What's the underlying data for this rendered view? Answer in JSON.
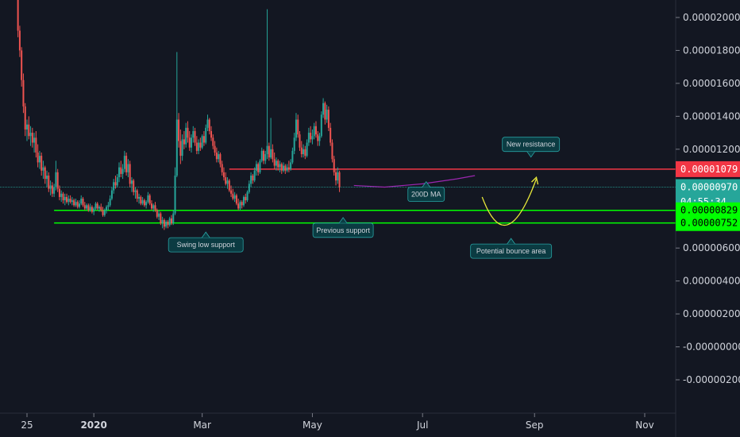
{
  "chart_data": {
    "type": "candlestick",
    "title": "",
    "xlabel": "",
    "ylabel": "",
    "ylim": [
      -3.8e-06,
      2.15e-05
    ],
    "y_ticks": [
      "0.00002000",
      "0.00001800",
      "0.00001600",
      "0.00001400",
      "0.00001200",
      "0.00000600",
      "0.00000400",
      "0.00000200",
      "-0.00000000",
      "-0.00000200"
    ],
    "y_tick_values": [
      2e-05,
      1.8e-05,
      1.6e-05,
      1.4e-05,
      1.2e-05,
      6e-06,
      4e-06,
      2e-06,
      0.0,
      -2e-06
    ],
    "x_ticks": [
      {
        "label": "25",
        "date": "2019-11-25",
        "bold": false
      },
      {
        "label": "2020",
        "date": "2020-01-01",
        "bold": true
      },
      {
        "label": "Mar",
        "date": "2020-03-01",
        "bold": false
      },
      {
        "label": "May",
        "date": "2020-05-01",
        "bold": false
      },
      {
        "label": "Jul",
        "date": "2020-07-01",
        "bold": false
      },
      {
        "label": "Sep",
        "date": "2020-09-01",
        "bold": false
      },
      {
        "label": "Nov",
        "date": "2020-11-01",
        "bold": false
      }
    ],
    "price_levels": [
      {
        "label": "0.00001079",
        "value": 1.079e-05,
        "color": "#f23645",
        "text_color": "#ffffff",
        "line": "resistance"
      },
      {
        "label": "0.00000970",
        "value": 9.7e-06,
        "color": "#26a69a",
        "text_color": "#ffffff",
        "line": "last"
      },
      {
        "label": "04:55:34",
        "value": 8.8e-06,
        "color": "#26a69a",
        "text_color": "#ffffff",
        "line": "countdown"
      },
      {
        "label": "0.00000829",
        "value": 8.29e-06,
        "color": "#00ff00",
        "text_color": "#000000",
        "line": "support"
      },
      {
        "label": "0.00000752",
        "value": 7.52e-06,
        "color": "#00ff00",
        "text_color": "#000000",
        "line": "support"
      }
    ],
    "lines": {
      "resistance": {
        "value": 1.079e-05,
        "from": "2020-03-16",
        "color": "#f23645"
      },
      "support_upper": {
        "value": 8.29e-06,
        "from": "2019-12-10",
        "color": "#00ff00"
      },
      "support_lower": {
        "value": 7.52e-06,
        "from": "2019-12-10",
        "color": "#00ff00"
      },
      "last_price": {
        "value": 9.7e-06,
        "color": "#26a69a"
      }
    },
    "ma200": {
      "name": "200D MA",
      "color": "#9c27b0",
      "points": [
        [
          "2020-05-24",
          9.8e-06
        ],
        [
          "2020-06-10",
          9.7e-06
        ],
        [
          "2020-07-01",
          9.9e-06
        ],
        [
          "2020-07-20",
          1.02e-05
        ],
        [
          "2020-07-30",
          1.04e-05
        ]
      ]
    },
    "projection": {
      "color": "#e8e83a",
      "points": [
        [
          "2020-08-03",
          9.1e-06
        ],
        [
          "2020-08-18",
          7.5e-06
        ],
        [
          "2020-09-02",
          1.02e-05
        ]
      ]
    },
    "annotations": [
      {
        "text": "Swing low support",
        "date": "2020-03-03",
        "value": 7.5e-06
      },
      {
        "text": "Previous support",
        "date": "2020-05-18",
        "value": 7.9e-06
      },
      {
        "text": "200D MA",
        "date": "2020-07-03",
        "value": 9.5e-06
      },
      {
        "text": "Potential bounce area",
        "date": "2020-08-19",
        "value": 7.5e-06
      },
      {
        "text": "New resistance",
        "date": "2020-08-30",
        "value": 1.08e-05
      }
    ],
    "candles_start": "2019-11-20",
    "ohlc": [
      [
        2.15e-05,
        2.15e-05,
        1.88e-05,
        1.92e-05
      ],
      [
        1.92e-05,
        1.95e-05,
        1.76e-05,
        1.8e-05
      ],
      [
        1.8e-05,
        1.82e-05,
        1.58e-05,
        1.62e-05
      ],
      [
        1.62e-05,
        1.66e-05,
        1.42e-05,
        1.46e-05
      ],
      [
        1.46e-05,
        1.48e-05,
        1.28e-05,
        1.32e-05
      ],
      [
        1.32e-05,
        1.38e-05,
        1.25e-05,
        1.35e-05
      ],
      [
        1.35e-05,
        1.4e-05,
        1.26e-05,
        1.28e-05
      ],
      [
        1.28e-05,
        1.34e-05,
        1.22e-05,
        1.3e-05
      ],
      [
        1.3e-05,
        1.33e-05,
        1.21e-05,
        1.24e-05
      ],
      [
        1.24e-05,
        1.3e-05,
        1.18e-05,
        1.27e-05
      ],
      [
        1.27e-05,
        1.31e-05,
        1.15e-05,
        1.18e-05
      ],
      [
        1.18e-05,
        1.23e-05,
        1.09e-05,
        1.12e-05
      ],
      [
        1.12e-05,
        1.19e-05,
        1.08e-05,
        1.16e-05
      ],
      [
        1.16e-05,
        1.18e-05,
        1.04e-05,
        1.07e-05
      ],
      [
        1.07e-05,
        1.13e-05,
        1.02e-05,
        1.09e-05
      ],
      [
        1.09e-05,
        1.1e-05,
        9.9e-06,
        1.02e-05
      ],
      [
        1.02e-05,
        1.07e-05,
        9.7e-06,
        1.04e-05
      ],
      [
        1.04e-05,
        1.06e-05,
        9.4e-06,
        9.6e-06
      ],
      [
        9.6e-06,
        1.01e-05,
        9.2e-06,
        9.8e-06
      ],
      [
        9.8e-06,
        1e-05,
        9.1e-06,
        9.3e-06
      ],
      [
        9.3e-06,
        9.9e-06,
        9.1e-06,
        9.7e-06
      ],
      [
        9.7e-06,
        1.13e-05,
        9.5e-06,
        1.06e-05
      ],
      [
        1.06e-05,
        1.08e-05,
        9.4e-06,
        9.6e-06
      ],
      [
        9.6e-06,
        9.8e-06,
        8.9e-06,
        9.1e-06
      ],
      [
        9.1e-06,
        9.5e-06,
        8.8e-06,
        9.3e-06
      ],
      [
        9.3e-06,
        9.4e-06,
        8.7e-06,
        8.9e-06
      ],
      [
        8.9e-06,
        9.3e-06,
        8.6e-06,
        9.1e-06
      ],
      [
        9.1e-06,
        9.3e-06,
        8.7e-06,
        8.8e-06
      ],
      [
        8.8e-06,
        9.2e-06,
        8.6e-06,
        9e-06
      ],
      [
        9e-06,
        9.2e-06,
        8.7e-06,
        8.8e-06
      ],
      [
        8.8e-06,
        9.1e-06,
        8.6e-06,
        8.9e-06
      ],
      [
        8.9e-06,
        9e-06,
        8.5e-06,
        8.6e-06
      ],
      [
        8.6e-06,
        9e-06,
        8.5e-06,
        8.8e-06
      ],
      [
        8.8e-06,
        8.9e-06,
        8.4e-06,
        8.5e-06
      ],
      [
        8.5e-06,
        8.9e-06,
        8.4e-06,
        8.7e-06
      ],
      [
        8.7e-06,
        9.2e-06,
        8.6e-06,
        9e-06
      ],
      [
        9e-06,
        9.1e-06,
        8.5e-06,
        8.6e-06
      ],
      [
        8.6e-06,
        8.8e-06,
        8.3e-06,
        8.4e-06
      ],
      [
        8.4e-06,
        8.7e-06,
        8.3e-06,
        8.6e-06
      ],
      [
        8.6e-06,
        8.7e-06,
        8.2e-06,
        8.3e-06
      ],
      [
        8.3e-06,
        8.7e-06,
        8.2e-06,
        8.5e-06
      ],
      [
        8.5e-06,
        8.6e-06,
        8.1e-06,
        8.2e-06
      ],
      [
        8.2e-06,
        8.5e-06,
        8e-06,
        8.4e-06
      ],
      [
        8.4e-06,
        8.8e-06,
        8.3e-06,
        8.7e-06
      ],
      [
        8.7e-06,
        8.8e-06,
        8.3e-06,
        8.4e-06
      ],
      [
        8.4e-06,
        8.6e-06,
        8.2e-06,
        8.5e-06
      ],
      [
        8.5e-06,
        8.7e-06,
        8.2e-06,
        8.3e-06
      ],
      [
        8.3e-06,
        8.5e-06,
        7.9e-06,
        8e-06
      ],
      [
        8e-06,
        8.4e-06,
        7.9e-06,
        8.3e-06
      ],
      [
        8.3e-06,
        8.6e-06,
        8.1e-06,
        8.5e-06
      ],
      [
        8.5e-06,
        8.8e-06,
        8.3e-06,
        8.6e-06
      ],
      [
        8.6e-06,
        9.2e-06,
        8.5e-06,
        9e-06
      ],
      [
        9e-06,
        9.7e-06,
        8.9e-06,
        9.5e-06
      ],
      [
        9.5e-06,
        1.02e-05,
        9.3e-06,
        1e-05
      ],
      [
        1e-05,
        1.04e-05,
        9.6e-06,
        9.8e-06
      ],
      [
        9.8e-06,
        1.05e-05,
        9.7e-06,
        1.03e-05
      ],
      [
        1.03e-05,
        1.12e-05,
        1e-05,
        1.09e-05
      ],
      [
        1.09e-05,
        1.13e-05,
        1.03e-05,
        1.05e-05
      ],
      [
        1.05e-05,
        1.11e-05,
        1.02e-05,
        1.08e-05
      ],
      [
        1.08e-05,
        1.19e-05,
        1.06e-05,
        1.16e-05
      ],
      [
        1.16e-05,
        1.18e-05,
        1.04e-05,
        1.06e-05
      ],
      [
        1.06e-05,
        1.14e-05,
        1.03e-05,
        1.11e-05
      ],
      [
        1.11e-05,
        1.13e-05,
        9.7e-06,
        9.9e-06
      ],
      [
        9.9e-06,
        1.03e-05,
        9.4e-06,
        1.01e-05
      ],
      [
        1.01e-05,
        1.02e-05,
        9.2e-06,
        9.4e-06
      ],
      [
        9.4e-06,
        9.7e-06,
        9e-06,
        9.5e-06
      ],
      [
        9.5e-06,
        9.6e-06,
        8.8e-06,
        9e-06
      ],
      [
        9e-06,
        9.3e-06,
        8.7e-06,
        9.1e-06
      ],
      [
        9.1e-06,
        9.2e-06,
        8.6e-06,
        8.7e-06
      ],
      [
        8.7e-06,
        9.1e-06,
        8.6e-06,
        8.9e-06
      ],
      [
        8.9e-06,
        9e-06,
        8.5e-06,
        8.6e-06
      ],
      [
        8.6e-06,
        8.9e-06,
        8.4e-06,
        8.8e-06
      ],
      [
        8.8e-06,
        9.4e-06,
        8.7e-06,
        9.2e-06
      ],
      [
        9.2e-06,
        9.3e-06,
        8.6e-06,
        8.7e-06
      ],
      [
        8.7e-06,
        8.9e-06,
        8.3e-06,
        8.4e-06
      ],
      [
        8.4e-06,
        8.7e-06,
        8.2e-06,
        8.6e-06
      ],
      [
        8.6e-06,
        8.8e-06,
        8.2e-06,
        8.3e-06
      ],
      [
        8.3e-06,
        8.4e-06,
        7.8e-06,
        7.9e-06
      ],
      [
        7.9e-06,
        8.3e-06,
        7.7e-06,
        8.1e-06
      ],
      [
        8.1e-06,
        8.2e-06,
        7.4e-06,
        7.5e-06
      ],
      [
        7.5e-06,
        7.9e-06,
        7.2e-06,
        7.7e-06
      ],
      [
        7.7e-06,
        7.8e-06,
        7.1e-06,
        7.3e-06
      ],
      [
        7.3e-06,
        7.7e-06,
        7.2e-06,
        7.6e-06
      ],
      [
        7.6e-06,
        7.7e-06,
        7.2e-06,
        7.4e-06
      ],
      [
        7.4e-06,
        7.9e-06,
        7.3e-06,
        7.8e-06
      ],
      [
        7.8e-06,
        8e-06,
        7.4e-06,
        7.5e-06
      ],
      [
        7.5e-06,
        8.3e-06,
        7.4e-06,
        8.1e-06
      ],
      [
        8.1e-06,
        1.09e-05,
        8e-06,
        1.04e-05
      ],
      [
        1.04e-05,
        1.79e-05,
        1.03e-05,
        1.38e-05
      ],
      [
        1.38e-05,
        1.42e-05,
        1.21e-05,
        1.25e-05
      ],
      [
        1.25e-05,
        1.32e-05,
        1.11e-05,
        1.16e-05
      ],
      [
        1.16e-05,
        1.29e-05,
        1.13e-05,
        1.26e-05
      ],
      [
        1.26e-05,
        1.31e-05,
        1.2e-05,
        1.23e-05
      ],
      [
        1.23e-05,
        1.36e-05,
        1.21e-05,
        1.33e-05
      ],
      [
        1.33e-05,
        1.37e-05,
        1.24e-05,
        1.27e-05
      ],
      [
        1.27e-05,
        1.31e-05,
        1.19e-05,
        1.21e-05
      ],
      [
        1.21e-05,
        1.29e-05,
        1.18e-05,
        1.27e-05
      ],
      [
        1.27e-05,
        1.34e-05,
        1.24e-05,
        1.31e-05
      ],
      [
        1.31e-05,
        1.33e-05,
        1.22e-05,
        1.24e-05
      ],
      [
        1.24e-05,
        1.28e-05,
        1.17e-05,
        1.19e-05
      ],
      [
        1.19e-05,
        1.26e-05,
        1.17e-05,
        1.24e-05
      ],
      [
        1.24e-05,
        1.27e-05,
        1.19e-05,
        1.21e-05
      ],
      [
        1.21e-05,
        1.29e-05,
        1.2e-05,
        1.28e-05
      ],
      [
        1.28e-05,
        1.31e-05,
        1.22e-05,
        1.24e-05
      ],
      [
        1.24e-05,
        1.35e-05,
        1.23e-05,
        1.33e-05
      ],
      [
        1.33e-05,
        1.41e-05,
        1.31e-05,
        1.38e-05
      ],
      [
        1.38e-05,
        1.39e-05,
        1.29e-05,
        1.31e-05
      ],
      [
        1.31e-05,
        1.34e-05,
        1.25e-05,
        1.27e-05
      ],
      [
        1.27e-05,
        1.29e-05,
        1.2e-05,
        1.22e-05
      ],
      [
        1.22e-05,
        1.25e-05,
        1.16e-05,
        1.18e-05
      ],
      [
        1.18e-05,
        1.21e-05,
        1.12e-05,
        1.14e-05
      ],
      [
        1.14e-05,
        1.19e-05,
        1.12e-05,
        1.17e-05
      ],
      [
        1.17e-05,
        1.18e-05,
        1.09e-05,
        1.11e-05
      ],
      [
        1.11e-05,
        1.13e-05,
        1.04e-05,
        1.06e-05
      ],
      [
        1.06e-05,
        1.09e-05,
        1.01e-05,
        1.03e-05
      ],
      [
        1.03e-05,
        1.06e-05,
        9.8e-06,
        9.9e-06
      ],
      [
        9.9e-06,
        1.03e-05,
        9.6e-06,
        1.01e-05
      ],
      [
        1.01e-05,
        1.02e-05,
        9.4e-06,
        9.5e-06
      ],
      [
        9.5e-06,
        9.8e-06,
        9.1e-06,
        9.3e-06
      ],
      [
        9.3e-06,
        9.6e-06,
        8.9e-06,
        9e-06
      ],
      [
        9e-06,
        9.4e-06,
        8.8e-06,
        9.2e-06
      ],
      [
        9.2e-06,
        9.3e-06,
        8.6e-06,
        8.7e-06
      ],
      [
        8.7e-06,
        9e-06,
        8.3e-06,
        8.4e-06
      ],
      [
        8.4e-06,
        8.9e-06,
        8.3e-06,
        8.8e-06
      ],
      [
        8.8e-06,
        8.9e-06,
        8.4e-06,
        8.6e-06
      ],
      [
        8.6e-06,
        9.2e-06,
        8.5e-06,
        9.1e-06
      ],
      [
        9.1e-06,
        9.3e-06,
        8.7e-06,
        8.9e-06
      ],
      [
        8.9e-06,
        9.5e-06,
        8.8e-06,
        9.4e-06
      ],
      [
        9.4e-06,
        1.01e-05,
        9.3e-06,
        9.9e-06
      ],
      [
        9.9e-06,
        1.06e-05,
        9.7e-06,
        1.04e-05
      ],
      [
        1.04e-05,
        1.05e-05,
        9.9e-06,
        1.01e-05
      ],
      [
        1.01e-05,
        1.09e-05,
        1e-05,
        1.07e-05
      ],
      [
        1.07e-05,
        1.13e-05,
        1.04e-05,
        1.11e-05
      ],
      [
        1.11e-05,
        1.12e-05,
        1.04e-05,
        1.06e-05
      ],
      [
        1.06e-05,
        1.14e-05,
        1.05e-05,
        1.13e-05
      ],
      [
        1.13e-05,
        1.21e-05,
        1.12e-05,
        1.19e-05
      ],
      [
        1.19e-05,
        1.2e-05,
        1.11e-05,
        1.13e-05
      ],
      [
        1.13e-05,
        1.19e-05,
        1.11e-05,
        1.17e-05
      ],
      [
        1.17e-05,
        2.05e-05,
        1.14e-05,
        1.22e-05
      ],
      [
        1.22e-05,
        1.24e-05,
        1.13e-05,
        1.15e-05
      ],
      [
        1.15e-05,
        1.39e-05,
        1.14e-05,
        1.2e-05
      ],
      [
        1.2e-05,
        1.23e-05,
        1.12e-05,
        1.14e-05
      ],
      [
        1.14e-05,
        1.18e-05,
        1.08e-05,
        1.1e-05
      ],
      [
        1.1e-05,
        1.15e-05,
        1.07e-05,
        1.13e-05
      ],
      [
        1.13e-05,
        1.14e-05,
        1.07e-05,
        1.09e-05
      ],
      [
        1.09e-05,
        1.13e-05,
        1.06e-05,
        1.11e-05
      ],
      [
        1.11e-05,
        1.12e-05,
        1.05e-05,
        1.07e-05
      ],
      [
        1.07e-05,
        1.12e-05,
        1.06e-05,
        1.1e-05
      ],
      [
        1.1e-05,
        1.11e-05,
        1.05e-05,
        1.07e-05
      ],
      [
        1.07e-05,
        1.11e-05,
        1.06e-05,
        1.09e-05
      ],
      [
        1.09e-05,
        1.13e-05,
        1.06e-05,
        1.08e-05
      ],
      [
        1.08e-05,
        1.14e-05,
        1.07e-05,
        1.12e-05
      ],
      [
        1.12e-05,
        1.21e-05,
        1.11e-05,
        1.19e-05
      ],
      [
        1.19e-05,
        1.3e-05,
        1.17e-05,
        1.27e-05
      ],
      [
        1.27e-05,
        1.42e-05,
        1.25e-05,
        1.38e-05
      ],
      [
        1.38e-05,
        1.41e-05,
        1.27e-05,
        1.29e-05
      ],
      [
        1.29e-05,
        1.31e-05,
        1.19e-05,
        1.21e-05
      ],
      [
        1.21e-05,
        1.25e-05,
        1.15e-05,
        1.17e-05
      ],
      [
        1.17e-05,
        1.23e-05,
        1.15e-05,
        1.2e-05
      ],
      [
        1.2e-05,
        1.22e-05,
        1.14e-05,
        1.16e-05
      ],
      [
        1.16e-05,
        1.26e-05,
        1.15e-05,
        1.24e-05
      ],
      [
        1.24e-05,
        1.33e-05,
        1.22e-05,
        1.3e-05
      ],
      [
        1.3e-05,
        1.34e-05,
        1.24e-05,
        1.26e-05
      ],
      [
        1.26e-05,
        1.32e-05,
        1.23e-05,
        1.28e-05
      ],
      [
        1.28e-05,
        1.36e-05,
        1.26e-05,
        1.34e-05
      ],
      [
        1.34e-05,
        1.37e-05,
        1.27e-05,
        1.29e-05
      ],
      [
        1.29e-05,
        1.31e-05,
        1.22e-05,
        1.25e-05
      ],
      [
        1.25e-05,
        1.3e-05,
        1.22e-05,
        1.28e-05
      ],
      [
        1.28e-05,
        1.43e-05,
        1.27e-05,
        1.41e-05
      ],
      [
        1.41e-05,
        1.51e-05,
        1.39e-05,
        1.48e-05
      ],
      [
        1.48e-05,
        1.49e-05,
        1.35e-05,
        1.38e-05
      ],
      [
        1.38e-05,
        1.47e-05,
        1.36e-05,
        1.44e-05
      ],
      [
        1.44e-05,
        1.46e-05,
        1.31e-05,
        1.33e-05
      ],
      [
        1.33e-05,
        1.36e-05,
        1.22e-05,
        1.24e-05
      ],
      [
        1.24e-05,
        1.26e-05,
        1.12e-05,
        1.14e-05
      ],
      [
        1.14e-05,
        1.16e-05,
        1.04e-05,
        1.06e-05
      ],
      [
        1.06e-05,
        1.08e-05,
        9.8e-06,
        1.01e-05
      ],
      [
        1.01e-05,
        1.09e-05,
        9.9e-06,
        1.06e-05
      ],
      [
        1.06e-05,
        1.07e-05,
        9.4e-06,
        9.7e-06
      ]
    ]
  }
}
